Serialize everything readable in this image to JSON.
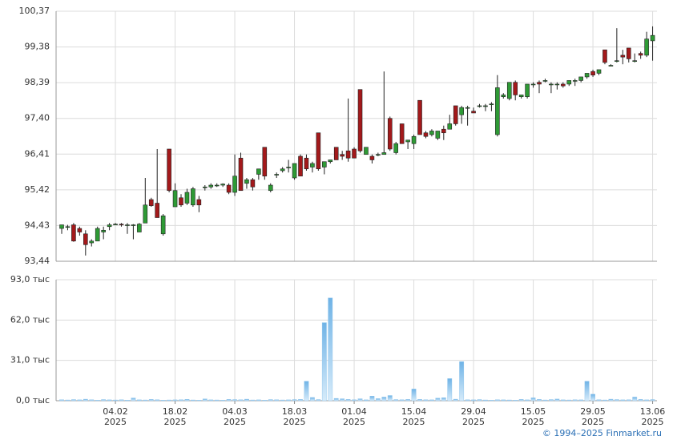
{
  "chart_data": {
    "type": "candlestick",
    "yticks": [
      {
        "value": 100.37,
        "label": "100,37"
      },
      {
        "value": 99.38,
        "label": "99,38"
      },
      {
        "value": 98.39,
        "label": "98,39"
      },
      {
        "value": 97.4,
        "label": "97,40"
      },
      {
        "value": 96.41,
        "label": "96,41"
      },
      {
        "value": 95.42,
        "label": "95,42"
      },
      {
        "value": 94.43,
        "label": "94,43"
      },
      {
        "value": 93.44,
        "label": "93,44"
      }
    ],
    "ylim": [
      93.44,
      100.37
    ],
    "y2ticks": [
      {
        "value": 93,
        "label": "93,0 тыс"
      },
      {
        "value": 62,
        "label": "62,0 тыс"
      },
      {
        "value": 31,
        "label": "31,0 тыс"
      },
      {
        "value": 0,
        "label": "0,0 тыс"
      }
    ],
    "y2lim": [
      0,
      93
    ],
    "xlim": [
      -0.94,
      99.73
    ],
    "xticks": [
      {
        "value": 9,
        "label": "04.02"
      },
      {
        "value": 19,
        "label": "18.02"
      },
      {
        "value": 29,
        "label": "04.03"
      },
      {
        "value": 39,
        "label": "18.03"
      },
      {
        "value": 49,
        "label": "01.04"
      },
      {
        "value": 59,
        "label": "15.04"
      },
      {
        "value": 69,
        "label": "29.04"
      },
      {
        "value": 79,
        "label": "15.05"
      },
      {
        "value": 89,
        "label": "29.05"
      },
      {
        "value": 99,
        "label": "13.06"
      }
    ],
    "year": "2025",
    "grid": true,
    "up_color": "#2e9a35",
    "down_color": "#a3191b",
    "volume_color": "#8ec4ec",
    "ohlc": [
      [
        94.35,
        94.45,
        94.2,
        94.45
      ],
      [
        94.4,
        94.45,
        94.3,
        94.4
      ],
      [
        94.45,
        94.5,
        93.98,
        94.0
      ],
      [
        94.35,
        94.4,
        94.15,
        94.25
      ],
      [
        94.2,
        94.3,
        93.6,
        93.9
      ],
      [
        93.95,
        94.05,
        93.85,
        94.0
      ],
      [
        94.0,
        94.4,
        94.0,
        94.35
      ],
      [
        94.25,
        94.4,
        94.05,
        94.3
      ],
      [
        94.4,
        94.5,
        94.3,
        94.45
      ],
      [
        94.45,
        94.5,
        94.45,
        94.47
      ],
      [
        94.47,
        94.5,
        94.4,
        94.45
      ],
      [
        94.45,
        94.5,
        94.2,
        94.45
      ],
      [
        94.45,
        94.47,
        94.05,
        94.45
      ],
      [
        94.25,
        94.5,
        94.25,
        94.47
      ],
      [
        94.5,
        95.75,
        94.5,
        95.0
      ],
      [
        95.15,
        95.2,
        94.95,
        94.98
      ],
      [
        95.05,
        96.55,
        94.65,
        94.65
      ],
      [
        94.2,
        94.75,
        94.15,
        94.7
      ],
      [
        96.55,
        96.55,
        95.35,
        95.4
      ],
      [
        94.95,
        95.6,
        94.95,
        95.4
      ],
      [
        95.2,
        95.3,
        94.95,
        95.0
      ],
      [
        95.05,
        95.45,
        95.0,
        95.35
      ],
      [
        95.0,
        95.5,
        94.95,
        95.45
      ],
      [
        95.15,
        95.25,
        94.8,
        95.0
      ],
      [
        95.5,
        95.55,
        95.4,
        95.5
      ],
      [
        95.5,
        95.6,
        95.45,
        95.55
      ],
      [
        95.55,
        95.6,
        95.5,
        95.55
      ],
      [
        95.55,
        95.6,
        95.5,
        95.58
      ],
      [
        95.55,
        95.6,
        95.3,
        95.35
      ],
      [
        95.35,
        96.4,
        95.25,
        95.8
      ],
      [
        96.3,
        96.45,
        95.4,
        95.4
      ],
      [
        95.6,
        95.75,
        95.45,
        95.7
      ],
      [
        95.7,
        95.75,
        95.4,
        95.5
      ],
      [
        95.85,
        96.0,
        95.7,
        96.0
      ],
      [
        96.6,
        96.6,
        95.7,
        95.8
      ],
      [
        95.4,
        95.6,
        95.35,
        95.55
      ],
      [
        95.85,
        95.9,
        95.75,
        95.85
      ],
      [
        95.95,
        96.05,
        95.9,
        96.0
      ],
      [
        96.05,
        96.25,
        95.9,
        96.05
      ],
      [
        95.75,
        96.1,
        95.7,
        96.15
      ],
      [
        96.35,
        96.4,
        95.8,
        95.8
      ],
      [
        96.3,
        96.4,
        95.95,
        96.0
      ],
      [
        96.05,
        96.2,
        95.9,
        96.15
      ],
      [
        97.0,
        97.0,
        95.95,
        96.0
      ],
      [
        96.05,
        96.2,
        95.85,
        96.2
      ],
      [
        96.2,
        96.25,
        96.15,
        96.25
      ],
      [
        96.6,
        96.6,
        96.25,
        96.25
      ],
      [
        96.4,
        96.5,
        96.25,
        96.35
      ],
      [
        96.5,
        97.95,
        96.2,
        96.3
      ],
      [
        96.55,
        96.6,
        96.3,
        96.3
      ],
      [
        98.2,
        98.2,
        96.45,
        96.5
      ],
      [
        96.4,
        96.6,
        96.4,
        96.6
      ],
      [
        96.35,
        96.4,
        96.15,
        96.25
      ],
      [
        96.4,
        96.45,
        96.35,
        96.4
      ],
      [
        96.4,
        98.7,
        96.4,
        96.45
      ],
      [
        97.4,
        97.45,
        96.5,
        96.55
      ],
      [
        96.45,
        96.75,
        96.4,
        96.7
      ],
      [
        97.25,
        97.25,
        96.7,
        96.7
      ],
      [
        96.75,
        96.8,
        96.55,
        96.8
      ],
      [
        96.7,
        96.95,
        96.55,
        96.9
      ],
      [
        97.9,
        97.9,
        96.95,
        96.95
      ],
      [
        97.0,
        97.05,
        96.85,
        96.9
      ],
      [
        96.95,
        97.1,
        96.9,
        97.05
      ],
      [
        96.85,
        97.05,
        96.8,
        97.05
      ],
      [
        97.1,
        97.2,
        96.8,
        97.0
      ],
      [
        97.1,
        97.5,
        97.1,
        97.25
      ],
      [
        97.75,
        97.75,
        97.2,
        97.25
      ],
      [
        97.5,
        97.75,
        97.25,
        97.7
      ],
      [
        97.7,
        97.75,
        97.2,
        97.7
      ],
      [
        97.6,
        97.7,
        97.55,
        97.55
      ],
      [
        97.75,
        97.8,
        97.7,
        97.75
      ],
      [
        97.75,
        97.8,
        97.6,
        97.75
      ],
      [
        97.8,
        97.85,
        97.6,
        97.8
      ],
      [
        96.95,
        98.6,
        96.9,
        98.25
      ],
      [
        98.0,
        98.1,
        97.95,
        98.05
      ],
      [
        97.95,
        98.4,
        97.9,
        98.4
      ],
      [
        98.4,
        98.45,
        97.9,
        98.05
      ],
      [
        98.0,
        98.05,
        97.95,
        98.05
      ],
      [
        98.0,
        98.35,
        97.95,
        98.35
      ],
      [
        98.35,
        98.4,
        98.25,
        98.35
      ],
      [
        98.4,
        98.45,
        98.1,
        98.35
      ],
      [
        98.45,
        98.5,
        98.4,
        98.45
      ],
      [
        98.35,
        98.4,
        98.1,
        98.35
      ],
      [
        98.35,
        98.4,
        98.2,
        98.35
      ],
      [
        98.35,
        98.4,
        98.25,
        98.3
      ],
      [
        98.35,
        98.45,
        98.3,
        98.45
      ],
      [
        98.45,
        98.5,
        98.3,
        98.45
      ],
      [
        98.45,
        98.55,
        98.4,
        98.55
      ],
      [
        98.55,
        98.65,
        98.5,
        98.65
      ],
      [
        98.7,
        98.75,
        98.55,
        98.6
      ],
      [
        98.65,
        98.75,
        98.6,
        98.75
      ],
      [
        99.3,
        99.3,
        98.9,
        98.95
      ],
      [
        98.85,
        98.9,
        98.85,
        98.87
      ],
      [
        99.0,
        99.9,
        98.95,
        99.0
      ],
      [
        99.15,
        99.3,
        98.9,
        99.1
      ],
      [
        99.35,
        99.35,
        98.95,
        99.05
      ],
      [
        99.0,
        99.2,
        98.95,
        99.0
      ],
      [
        99.2,
        99.25,
        99.05,
        99.15
      ],
      [
        99.15,
        99.8,
        99.1,
        99.6
      ],
      [
        99.55,
        99.95,
        99.0,
        99.7
      ]
    ],
    "volume": [
      0.8,
      0.6,
      0.9,
      0.7,
      1.2,
      0.8,
      0.5,
      0.9,
      0.7,
      0.6,
      0.8,
      0.5,
      2.1,
      0.7,
      0.6,
      1.0,
      0.8,
      0.5,
      0.6,
      0.7,
      0.8,
      1.1,
      0.6,
      0.5,
      1.4,
      0.7,
      0.6,
      0.5,
      1.0,
      0.9,
      0.8,
      1.2,
      0.6,
      0.7,
      0.5,
      0.9,
      0.8,
      0.6,
      0.7,
      0.9,
      1.0,
      15.0,
      2.5,
      0.9,
      60.0,
      79.0,
      1.8,
      1.5,
      1.0,
      0.8,
      1.5,
      0.7,
      3.5,
      1.6,
      2.8,
      4.0,
      0.9,
      0.8,
      1.0,
      9.0,
      1.0,
      0.8,
      0.7,
      2.0,
      2.3,
      17.0,
      1.2,
      30.0,
      0.8,
      0.7,
      0.9,
      0.6,
      0.5,
      0.8,
      0.7,
      0.6,
      0.5,
      1.0,
      0.7,
      2.2,
      1.0,
      0.6,
      0.9,
      1.3,
      0.7,
      0.6,
      0.8,
      0.7,
      15.0,
      5.0,
      0.8,
      0.6,
      1.2,
      0.9,
      0.7,
      0.8,
      2.8,
      1.0,
      0.7,
      0.9
    ],
    "copyright": "© 1994–2025 Finmarket.ru"
  }
}
